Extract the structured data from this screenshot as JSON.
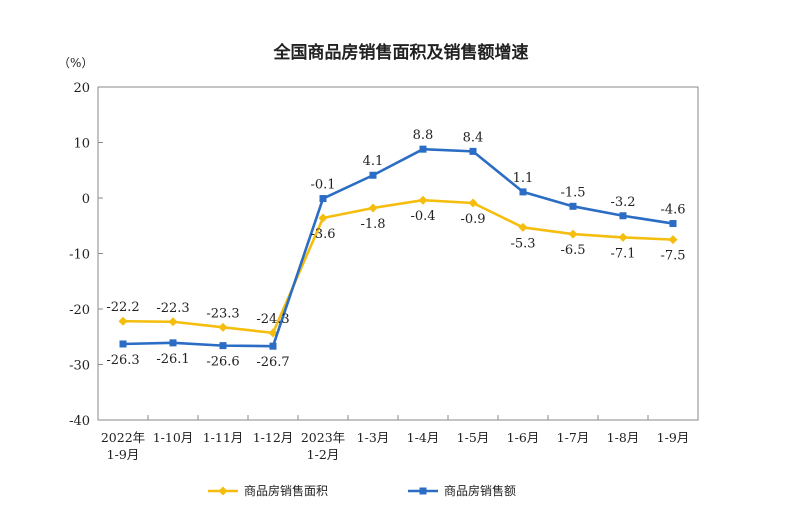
{
  "chart_data": {
    "type": "line",
    "title": "全国商品房销售面积及销售额增速",
    "unit_label": "（%）",
    "ylim": [
      -40,
      20
    ],
    "yticks": [
      "20",
      "10",
      "0",
      "-10",
      "-20",
      "-30",
      "-40"
    ],
    "ytick_values": [
      20,
      10,
      0,
      -10,
      -20,
      -30,
      -40
    ],
    "categories": [
      [
        "2022年",
        "1-9月"
      ],
      [
        "1-10月"
      ],
      [
        "1-11月"
      ],
      [
        "1-12月"
      ],
      [
        "2023年",
        "1-2月"
      ],
      [
        "1-3月"
      ],
      [
        "1-4月"
      ],
      [
        "1-5月"
      ],
      [
        "1-6月"
      ],
      [
        "1-7月"
      ],
      [
        "1-8月"
      ],
      [
        "1-9月"
      ]
    ],
    "legend_position": "bottom",
    "series": [
      {
        "name": "商品房销售面积",
        "color": "#F5BE0F",
        "marker": "diamond",
        "values": [
          -22.2,
          -22.3,
          -23.3,
          -24.3,
          -3.6,
          -1.8,
          -0.4,
          -0.9,
          -5.3,
          -6.5,
          -7.1,
          -7.5
        ],
        "labels": [
          "-22.2",
          "-22.3",
          "-23.3",
          "-24.3",
          "-3.6",
          "-1.8",
          "-0.4",
          "-0.9",
          "-5.3",
          "-6.5",
          "-7.1",
          "-7.5"
        ],
        "label_side": [
          "above",
          "above",
          "above",
          "above",
          "below",
          "below",
          "below",
          "below",
          "below",
          "below",
          "below",
          "below"
        ]
      },
      {
        "name": "商品房销售额",
        "color": "#2B6CC4",
        "marker": "square",
        "values": [
          -26.3,
          -26.1,
          -26.6,
          -26.7,
          -0.1,
          4.1,
          8.8,
          8.4,
          1.1,
          -1.5,
          -3.2,
          -4.6
        ],
        "labels": [
          "-26.3",
          "-26.1",
          "-26.6",
          "-26.7",
          "-0.1",
          "4.1",
          "8.8",
          "8.4",
          "1.1",
          "-1.5",
          "-3.2",
          "-4.6"
        ],
        "label_side": [
          "below",
          "below",
          "below",
          "below",
          "above",
          "above",
          "above",
          "above",
          "above",
          "above",
          "above",
          "above"
        ]
      }
    ]
  }
}
